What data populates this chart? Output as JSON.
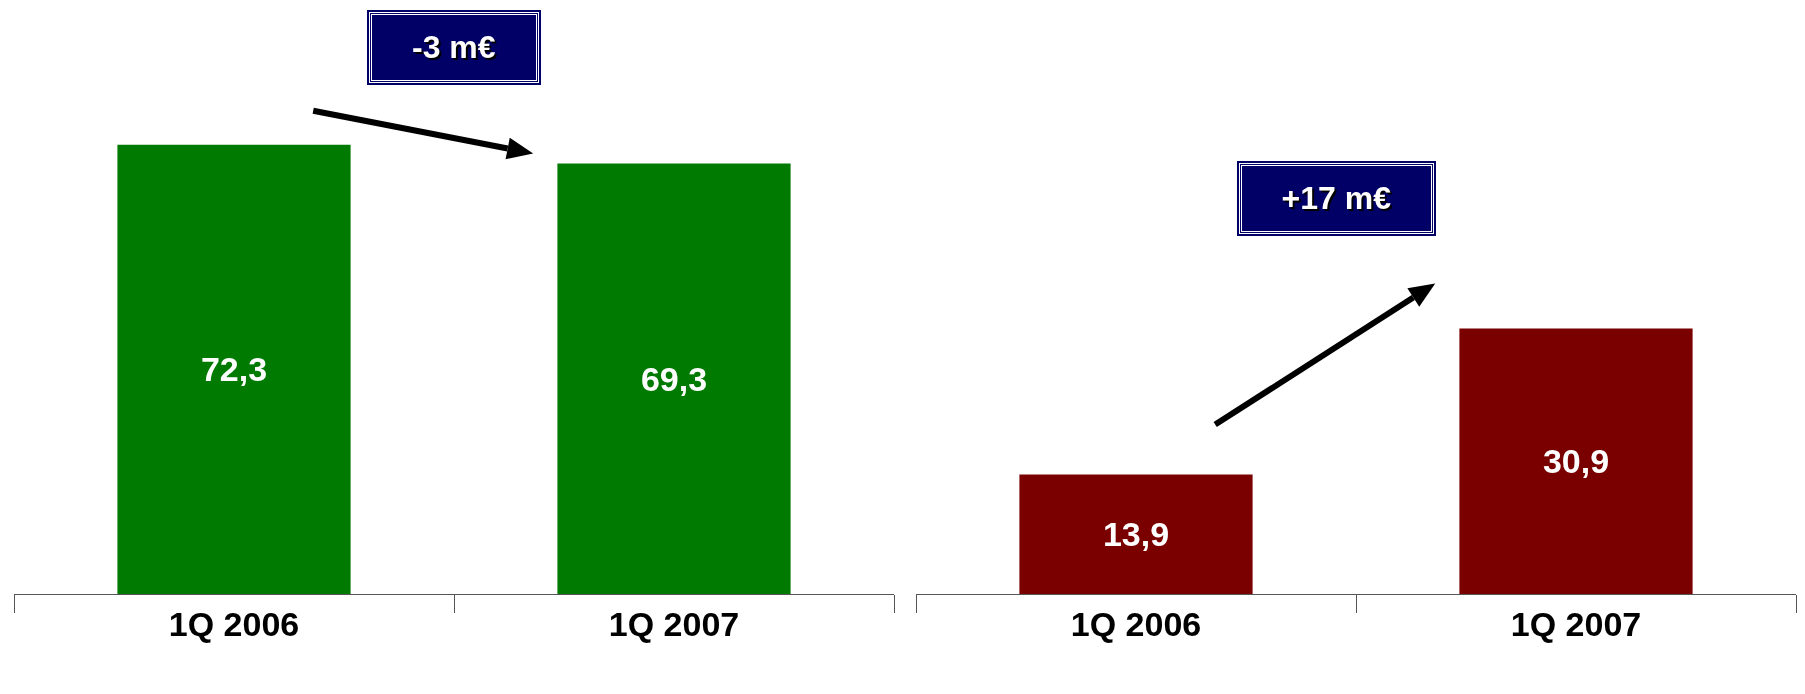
{
  "chart_data": [
    {
      "type": "bar",
      "categories": [
        "1Q 2006",
        "1Q 2007"
      ],
      "values": [
        72.3,
        69.3
      ],
      "value_labels": [
        "72,3",
        "69,3"
      ],
      "color": "#007a00",
      "annotations": [
        "-3 m€"
      ]
    },
    {
      "type": "bar",
      "categories": [
        "1Q 2006",
        "1Q 2007"
      ],
      "values": [
        13.9,
        30.9
      ],
      "value_labels": [
        "13,9",
        "30,9"
      ],
      "color": "#7a0000",
      "annotations": [
        "+17 m€"
      ]
    }
  ]
}
